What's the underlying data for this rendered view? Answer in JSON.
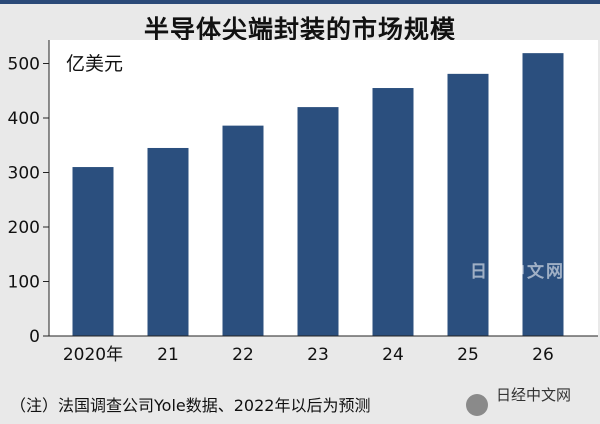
{
  "title": "半导体尖端封装的市场规模",
  "note": "（注）法国调查公司Yole数据、2022年以后为预测",
  "watermark_center": "日经中文网",
  "watermark_corner": "日经中文网",
  "chart_data": {
    "type": "bar",
    "categories": [
      "2020年",
      "21",
      "22",
      "23",
      "24",
      "25",
      "26"
    ],
    "values": [
      310,
      345,
      386,
      420,
      455,
      481,
      519
    ],
    "ylabel": "亿美元",
    "ylim": [
      0,
      550
    ],
    "yticks": [
      0,
      100,
      200,
      300,
      400,
      500
    ],
    "grid": false,
    "bar_color": "#2b4f7e"
  }
}
